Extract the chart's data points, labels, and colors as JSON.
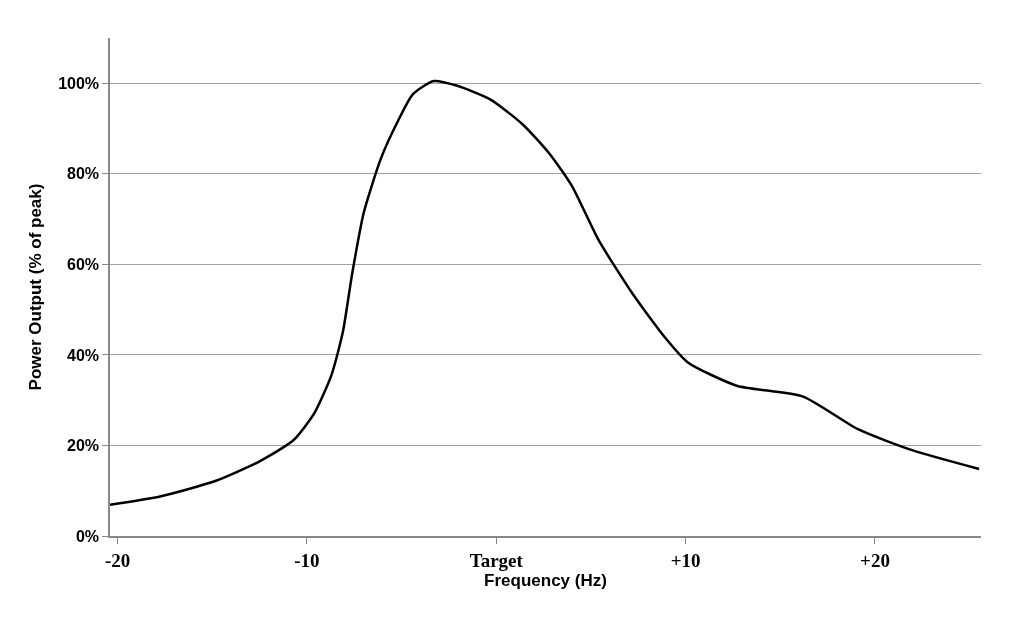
{
  "chart_data": {
    "type": "line",
    "xlabel": "Frequency (Hz)",
    "ylabel": "Power Output (% of peak)",
    "x": [
      -20.4,
      -17.7,
      -14.8,
      -12.5,
      -10.7,
      -9.6,
      -8.7,
      -8.1,
      -7.6,
      -7.0,
      -6.1,
      -5.2,
      -4.4,
      -3.3,
      -2.1,
      -0.3,
      1.4,
      2.8,
      4.0,
      5.4,
      7.2,
      8.9,
      10.1,
      12.7,
      16.2,
      19.1,
      22.0,
      25.5
    ],
    "series": [
      {
        "color": "#000000",
        "values": [
          6.9,
          8.8,
          12.2,
          16.5,
          21.2,
          27.2,
          35.6,
          45.1,
          58.2,
          71.4,
          83.3,
          91.6,
          97.6,
          100.5,
          99.5,
          96.4,
          90.9,
          84.5,
          77.3,
          65.4,
          53.5,
          43.9,
          38.4,
          33.2,
          30.8,
          23.6,
          18.9,
          14.8
        ]
      }
    ],
    "xlim": [
      -20.4,
      25.6
    ],
    "xticks": [
      {
        "value": -20,
        "label": "-20"
      },
      {
        "value": -10,
        "label": "-10"
      },
      {
        "value": 0,
        "label": "Target"
      },
      {
        "value": 10,
        "label": "+10"
      },
      {
        "value": 20,
        "label": "+20"
      }
    ],
    "ylim": [
      0,
      110
    ],
    "yticks": [
      {
        "value": 0,
        "label": "0%"
      },
      {
        "value": 20,
        "label": "20%"
      },
      {
        "value": 40,
        "label": "40%"
      },
      {
        "value": 60,
        "label": "60%"
      },
      {
        "value": 80,
        "label": "80%"
      },
      {
        "value": 100,
        "label": "100%"
      }
    ],
    "grid": "y",
    "marker": "none",
    "line_style": "solid"
  }
}
